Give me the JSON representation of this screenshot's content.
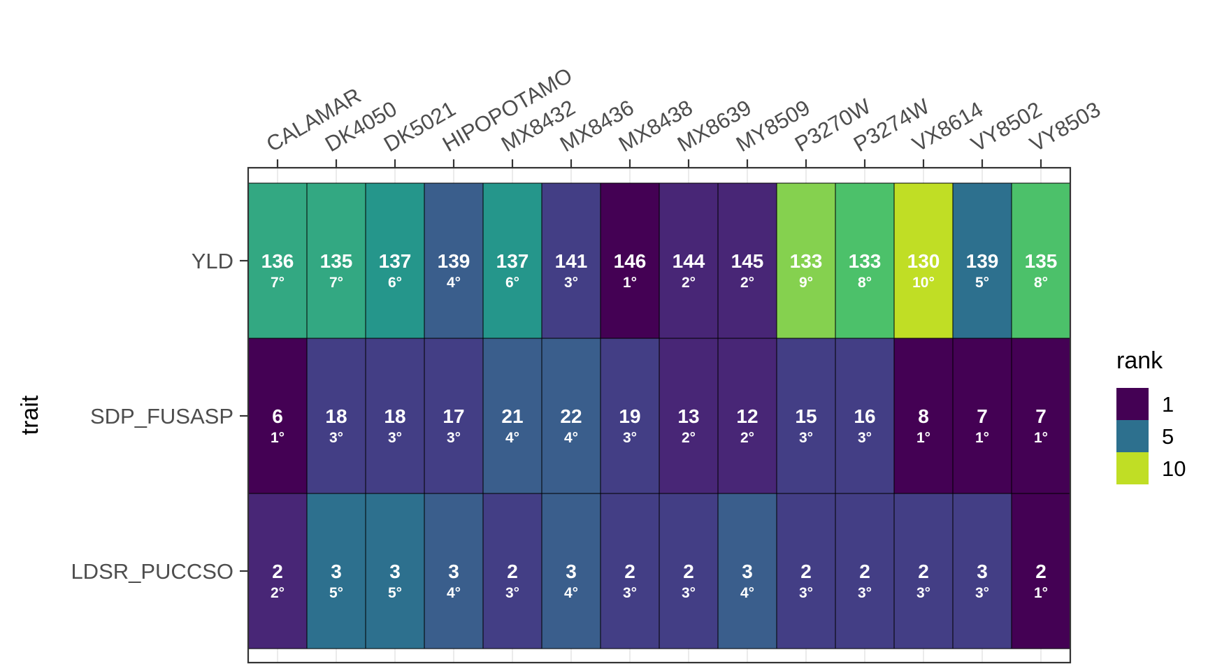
{
  "chart_data": {
    "type": "heatmap",
    "title": "",
    "xlabel": "",
    "ylabel": "trait",
    "x_position": "top",
    "legend_position": "right",
    "grid": true,
    "genotypes": [
      "CALAMAR",
      "DK4050",
      "DK5021",
      "HIPOPOTAMO",
      "MX8432",
      "MX8436",
      "MX8438",
      "MX8639",
      "MY8509",
      "P3270W",
      "P3274W",
      "VX8614",
      "VY8502",
      "VY8503"
    ],
    "traits": [
      "YLD",
      "SDP_FUSASP",
      "LDSR_PUCCSO"
    ],
    "cells": [
      {
        "values": [
          "136",
          "135",
          "137",
          "139",
          "137",
          "141",
          "146",
          "144",
          "145",
          "133",
          "133",
          "130",
          "139",
          "135"
        ],
        "ranks": [
          "7°",
          "7°",
          "6°",
          "4°",
          "6°",
          "3°",
          "1°",
          "2°",
          "2°",
          "9°",
          "8°",
          "10°",
          "5°",
          "8°"
        ],
        "rank_num": [
          7,
          7,
          6,
          4,
          6,
          3,
          1,
          2,
          2,
          9,
          8,
          10,
          5,
          8
        ]
      },
      {
        "values": [
          "6",
          "18",
          "18",
          "17",
          "21",
          "22",
          "19",
          "13",
          "12",
          "15",
          "16",
          "8",
          "7",
          "7"
        ],
        "ranks": [
          "1°",
          "3°",
          "3°",
          "3°",
          "4°",
          "4°",
          "3°",
          "2°",
          "2°",
          "3°",
          "3°",
          "1°",
          "1°",
          "1°"
        ],
        "rank_num": [
          1,
          3,
          3,
          3,
          4,
          4,
          3,
          2,
          2,
          3,
          3,
          1,
          1,
          1
        ]
      },
      {
        "values": [
          "2",
          "3",
          "3",
          "3",
          "2",
          "3",
          "2",
          "2",
          "3",
          "2",
          "2",
          "2",
          "3",
          "2"
        ],
        "ranks": [
          "2°",
          "5°",
          "5°",
          "4°",
          "3°",
          "4°",
          "3°",
          "3°",
          "4°",
          "3°",
          "3°",
          "3°",
          "3°",
          "1°"
        ],
        "rank_num": [
          2,
          5,
          5,
          4,
          3,
          4,
          3,
          3,
          4,
          3,
          3,
          3,
          3,
          1
        ]
      }
    ],
    "legend": {
      "title": "rank",
      "labels": [
        "1",
        "5",
        "10"
      ],
      "range": [
        1,
        10
      ]
    },
    "colors": {
      "rank_1": "#440154",
      "rank_2": "#482676",
      "rank_3": "#433E85",
      "rank_4": "#3A5E8C",
      "rank_5": "#2D708E",
      "rank_6": "#25968B",
      "rank_7": "#33A882",
      "rank_8": "#4CC16A",
      "rank_9": "#85D14F",
      "rank_10": "#C0DE25"
    }
  }
}
